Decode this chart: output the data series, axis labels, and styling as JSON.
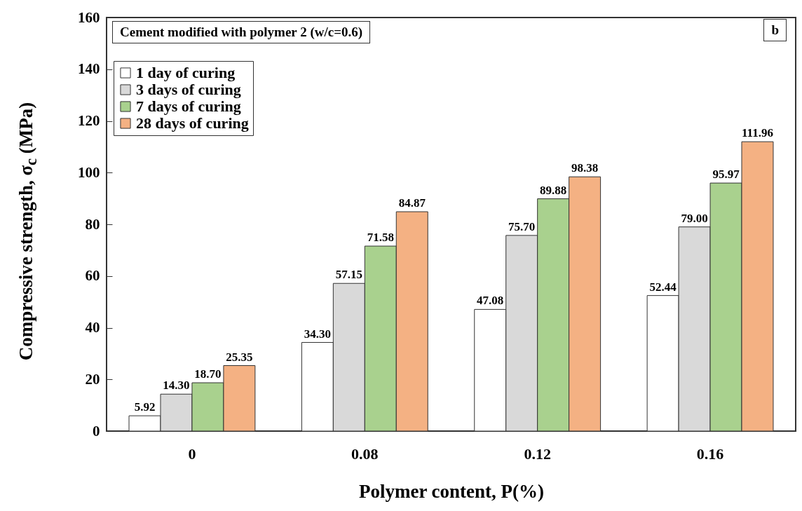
{
  "chart_data": {
    "type": "bar",
    "xlabel": "Polymer content, P(%)",
    "ylabel": "Compressive strength, σ$_{c}$ (MPa)",
    "annotations": [
      "Cement modified with polymer 2 (w/c=0.6)",
      "b"
    ],
    "categories": [
      "0",
      "0.08",
      "0.12",
      "0.16"
    ],
    "series": [
      {
        "name": "1 day of curing",
        "color": "#ffffff",
        "values": [
          5.92,
          34.3,
          47.08,
          52.44
        ],
        "value_labels": [
          "5.92",
          "34.30",
          "47.08",
          "52.44"
        ]
      },
      {
        "name": "3 days of curing",
        "color": "#d9d9d9",
        "values": [
          14.3,
          57.15,
          75.7,
          79.0
        ],
        "value_labels": [
          "14.30",
          "57.15",
          "75.70",
          "79.00"
        ]
      },
      {
        "name": "7 days of curing",
        "color": "#a9d18e",
        "values": [
          18.7,
          71.58,
          89.88,
          95.97
        ],
        "value_labels": [
          "18.70",
          "71.58",
          "89.88",
          "95.97"
        ]
      },
      {
        "name": "28 days of curing",
        "color": "#f4b183",
        "values": [
          25.35,
          84.87,
          98.38,
          111.96
        ],
        "value_labels": [
          "25.35",
          "84.87",
          "98.38",
          "111.96"
        ]
      }
    ],
    "ylim": [
      0,
      160
    ],
    "yticks": [
      0,
      20,
      40,
      60,
      80,
      100,
      120,
      140,
      160
    ],
    "grid": false,
    "legend": "top left"
  }
}
